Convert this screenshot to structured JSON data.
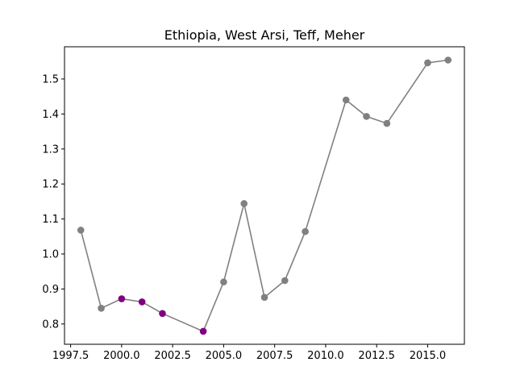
{
  "chart_data": {
    "type": "line",
    "title": "Ethiopia, West Arsi, Teff, Meher",
    "xlabel": "",
    "ylabel": "",
    "xlim": [
      1997.2,
      2016.8
    ],
    "ylim": [
      0.742,
      1.592
    ],
    "x_ticks": [
      1997.5,
      2000.0,
      2002.5,
      2005.0,
      2007.5,
      2010.0,
      2012.5,
      2015.0
    ],
    "x_tick_labels": [
      "1997.5",
      "2000.0",
      "2002.5",
      "2005.0",
      "2007.5",
      "2010.0",
      "2012.5",
      "2015.0"
    ],
    "y_ticks": [
      0.8,
      0.9,
      1.0,
      1.1,
      1.2,
      1.3,
      1.4,
      1.5
    ],
    "y_tick_labels": [
      "0.8",
      "0.9",
      "1.0",
      "1.1",
      "1.2",
      "1.3",
      "1.4",
      "1.5"
    ],
    "grid": false,
    "line_color": "#808080",
    "series": [
      {
        "x": [
          1998,
          1999,
          2000,
          2001,
          2002,
          2004,
          2005,
          2006,
          2007,
          2008,
          2009,
          2011,
          2012,
          2013,
          2015,
          2016
        ],
        "y": [
          1.068,
          0.845,
          0.872,
          0.863,
          0.83,
          0.779,
          0.92,
          1.144,
          0.876,
          0.924,
          1.064,
          1.44,
          1.393,
          1.373,
          1.546,
          1.554
        ],
        "point_colors": [
          "#808080",
          "#808080",
          "#800080",
          "#800080",
          "#800080",
          "#800080",
          "#808080",
          "#808080",
          "#808080",
          "#808080",
          "#808080",
          "#808080",
          "#808080",
          "#808080",
          "#808080",
          "#808080"
        ]
      }
    ]
  }
}
